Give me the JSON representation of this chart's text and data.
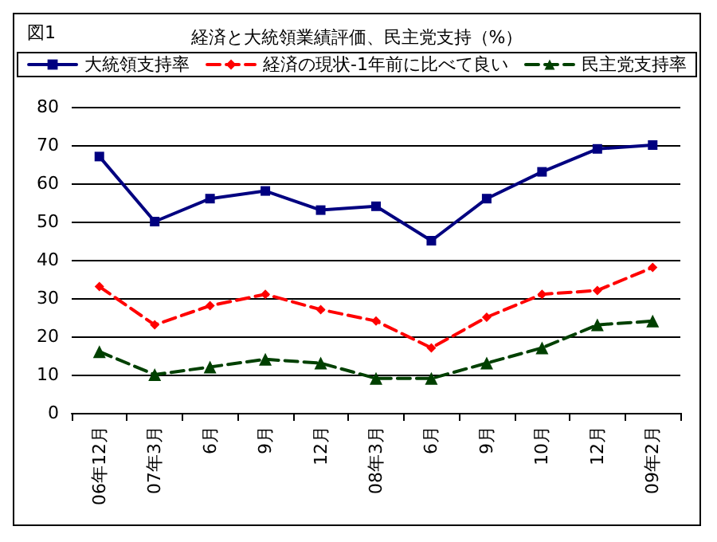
{
  "chart_data": {
    "type": "line",
    "title": "経済と大統領業績評価、民主党支持（%）",
    "annotations": [
      "図1"
    ],
    "categories": [
      "06年12月",
      "07年3月",
      "6月",
      "9月",
      "12月",
      "08年3月",
      "6月",
      "9月",
      "10月",
      "12月",
      "09年2月"
    ],
    "series": [
      {
        "name": "大統領支持率",
        "color": "#000080",
        "marker": "square",
        "line_style": "solid",
        "values": [
          67,
          50,
          56,
          58,
          53,
          54,
          45,
          56,
          63,
          69,
          70
        ]
      },
      {
        "name": "経済の現状-1年前に比べて良い",
        "color": "#ff0000",
        "marker": "diamond",
        "line_style": "dashed",
        "values": [
          33,
          23,
          28,
          31,
          27,
          24,
          17,
          25,
          31,
          32,
          38
        ]
      },
      {
        "name": "民主党支持率",
        "color": "#004000",
        "marker": "triangle",
        "line_style": "dashed",
        "values": [
          16,
          10,
          12,
          14,
          13,
          9,
          9,
          13,
          17,
          23,
          24
        ]
      }
    ],
    "ylim": [
      0,
      80
    ],
    "yticks": [
      0,
      10,
      20,
      30,
      40,
      50,
      60,
      70,
      80
    ],
    "grid": "y",
    "legend": "top"
  }
}
